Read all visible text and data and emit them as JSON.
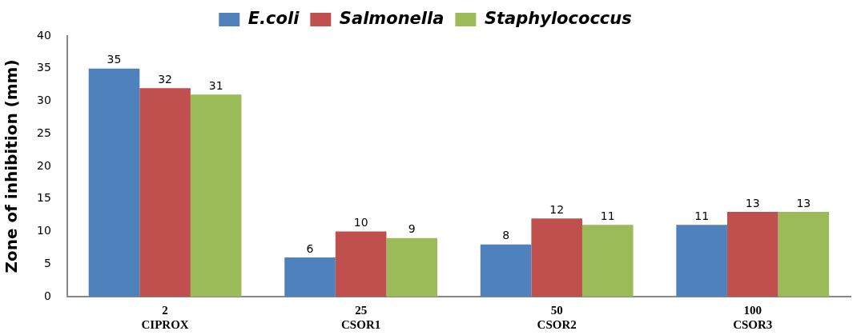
{
  "chart_data": {
    "type": "bar",
    "ylabel": "Zone of inhibition (mm)",
    "categories": [
      "2\nCIPROX",
      "25\nCSOR1",
      "50\nCSOR2",
      "100\nCSOR3"
    ],
    "series": [
      {
        "name": "E.coli",
        "color": "#4f81bd",
        "values": [
          35,
          6,
          8,
          11
        ]
      },
      {
        "name": "Salmonella",
        "color": "#c0504d",
        "values": [
          32,
          10,
          12,
          13
        ]
      },
      {
        "name": "Staphylococcus",
        "color": "#9bbb59",
        "values": [
          31,
          9,
          11,
          13
        ]
      }
    ],
    "ylim": [
      0,
      40
    ],
    "yticks": [
      0,
      5,
      10,
      15,
      20,
      25,
      30,
      35,
      40
    ],
    "grid": false,
    "legend": "top",
    "data_labels": true
  }
}
